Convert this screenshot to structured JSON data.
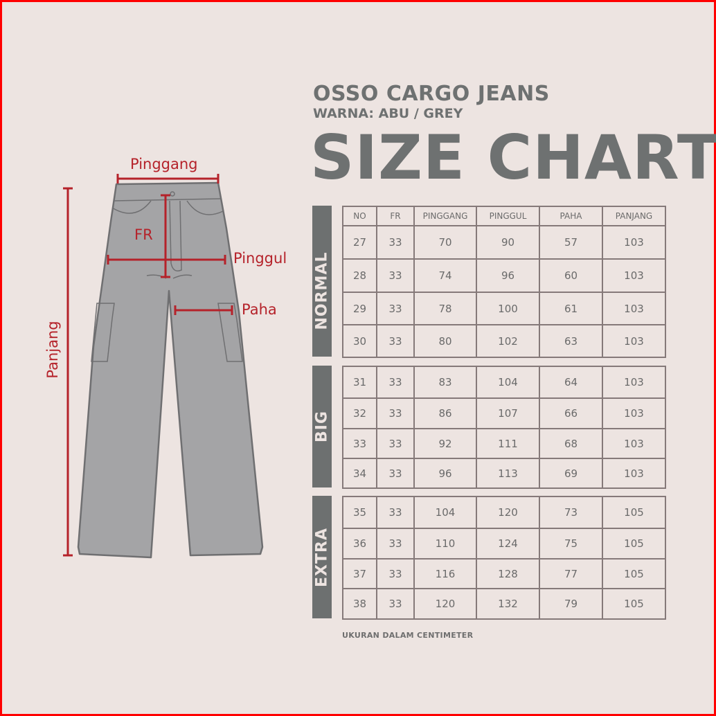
{
  "header": {
    "product": "OSSO CARGO JEANS",
    "color": "WARNA: ABU / GREY",
    "title": "SIZE CHART"
  },
  "diagram": {
    "labels": {
      "waist": "Pinggang",
      "rise": "FR",
      "hip": "Pinggul",
      "thigh": "Paha",
      "length": "Panjang"
    },
    "pants_color": "#a4a4a6",
    "marker_color": "#b5222a"
  },
  "table": {
    "columns": [
      "NO",
      "FR",
      "PINGGANG",
      "PINGGUL",
      "PAHA",
      "PANJANG"
    ],
    "groups": [
      {
        "name": "NORMAL",
        "rows": [
          [
            "27",
            "33",
            "70",
            "90",
            "57",
            "103"
          ],
          [
            "28",
            "33",
            "74",
            "96",
            "60",
            "103"
          ],
          [
            "29",
            "33",
            "78",
            "100",
            "61",
            "103"
          ],
          [
            "30",
            "33",
            "80",
            "102",
            "63",
            "103"
          ]
        ]
      },
      {
        "name": "BIG",
        "rows": [
          [
            "31",
            "33",
            "83",
            "104",
            "64",
            "103"
          ],
          [
            "32",
            "33",
            "86",
            "107",
            "66",
            "103"
          ],
          [
            "33",
            "33",
            "92",
            "111",
            "68",
            "103"
          ],
          [
            "34",
            "33",
            "96",
            "113",
            "69",
            "103"
          ]
        ]
      },
      {
        "name": "EXTRA",
        "rows": [
          [
            "35",
            "33",
            "104",
            "120",
            "73",
            "105"
          ],
          [
            "36",
            "33",
            "110",
            "124",
            "75",
            "105"
          ],
          [
            "37",
            "33",
            "116",
            "128",
            "77",
            "105"
          ],
          [
            "38",
            "33",
            "120",
            "132",
            "79",
            "105"
          ]
        ]
      }
    ]
  },
  "footer": "UKURAN DALAM CENTIMETER"
}
